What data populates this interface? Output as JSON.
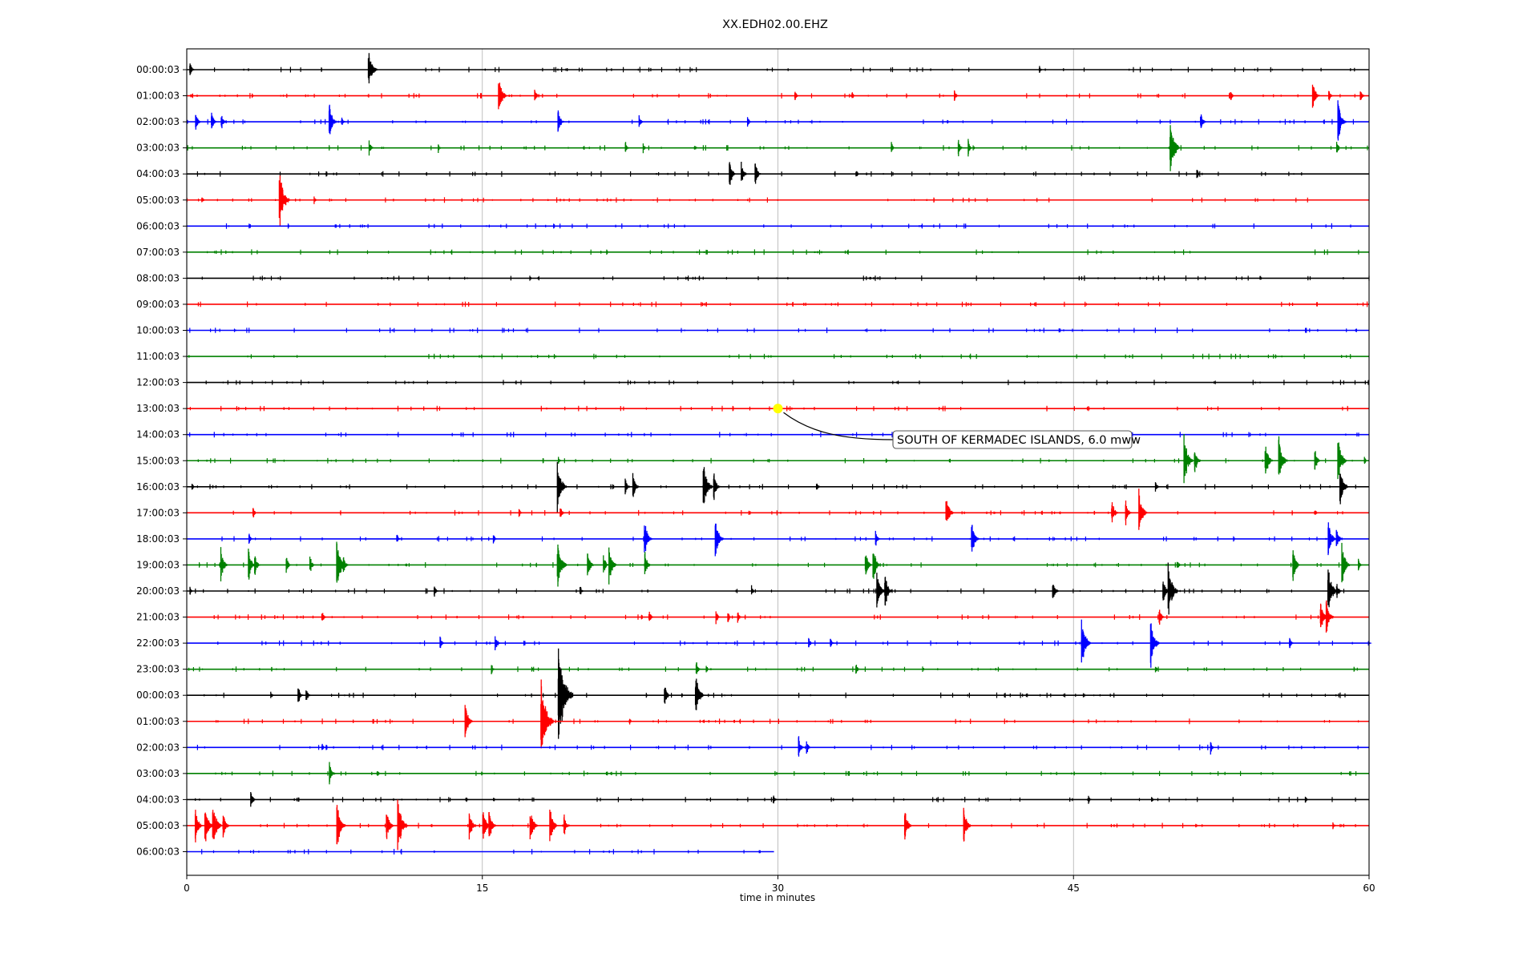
{
  "chart_data": {
    "type": "line",
    "title": "XX.EDH02.00.EHZ",
    "xlabel": "time in minutes",
    "ylabel": "",
    "xlim": [
      0,
      60
    ],
    "xticks": [
      0,
      15,
      30,
      45,
      60
    ],
    "grid": "vertical lines at x ticks",
    "trace_colors": [
      "#000000",
      "#ff0000",
      "#0000ff",
      "#008000"
    ],
    "rows": [
      {
        "label": "00:00:03",
        "color": "#000000",
        "end": 60,
        "events": [
          [
            0.2,
            0.4
          ],
          [
            9.3,
            1.1
          ],
          [
            43.3,
            0.2
          ]
        ]
      },
      {
        "label": "01:00:03",
        "color": "#ff0000",
        "end": 60,
        "events": [
          [
            15.9,
            1.0
          ],
          [
            17.7,
            0.35
          ],
          [
            30.9,
            0.3
          ],
          [
            33.8,
            0.2
          ],
          [
            39.0,
            0.3
          ],
          [
            53.0,
            0.3
          ],
          [
            57.2,
            0.75
          ],
          [
            58.0,
            0.35
          ],
          [
            59.6,
            0.35
          ]
        ]
      },
      {
        "label": "02:00:03",
        "color": "#0000ff",
        "end": 60,
        "events": [
          [
            0.5,
            0.5
          ],
          [
            1.3,
            0.5
          ],
          [
            1.8,
            0.45
          ],
          [
            7.3,
            0.9
          ],
          [
            7.9,
            0.3
          ],
          [
            18.9,
            0.65
          ],
          [
            23.0,
            0.35
          ],
          [
            28.5,
            0.3
          ],
          [
            51.5,
            0.55
          ],
          [
            58.5,
            1.0
          ]
        ]
      },
      {
        "label": "03:00:03",
        "color": "#008000",
        "end": 60,
        "events": [
          [
            9.3,
            0.4
          ],
          [
            12.8,
            0.2
          ],
          [
            22.3,
            0.3
          ],
          [
            23.2,
            0.25
          ],
          [
            25.8,
            0.2
          ],
          [
            35.8,
            0.25
          ],
          [
            39.2,
            0.4
          ],
          [
            39.7,
            0.35
          ],
          [
            50.0,
            1.3
          ],
          [
            58.4,
            0.3
          ]
        ]
      },
      {
        "label": "04:00:03",
        "color": "#000000",
        "end": 60,
        "events": [
          [
            27.6,
            0.7
          ],
          [
            28.2,
            0.6
          ],
          [
            28.9,
            0.6
          ],
          [
            34.0,
            0.25
          ],
          [
            51.3,
            0.3
          ]
        ]
      },
      {
        "label": "05:00:03",
        "color": "#ff0000",
        "end": 60,
        "events": [
          [
            0.8,
            0.2
          ],
          [
            4.8,
            1.4
          ],
          [
            6.5,
            0.2
          ]
        ]
      },
      {
        "label": "06:00:03",
        "color": "#0000ff",
        "end": 60,
        "events": []
      },
      {
        "label": "07:00:03",
        "color": "#008000",
        "end": 60,
        "events": []
      },
      {
        "label": "08:00:03",
        "color": "#000000",
        "end": 60,
        "events": [
          [
            54.5,
            0.15
          ]
        ]
      },
      {
        "label": "09:00:03",
        "color": "#ff0000",
        "end": 60,
        "events": []
      },
      {
        "label": "10:00:03",
        "color": "#0000ff",
        "end": 60,
        "events": []
      },
      {
        "label": "11:00:03",
        "color": "#008000",
        "end": 60,
        "events": []
      },
      {
        "label": "12:00:03",
        "color": "#000000",
        "end": 60,
        "events": []
      },
      {
        "label": "13:00:03",
        "color": "#ff0000",
        "end": 60,
        "events": []
      },
      {
        "label": "14:00:03",
        "color": "#0000ff",
        "end": 60,
        "events": []
      },
      {
        "label": "15:00:03",
        "color": "#008000",
        "end": 60,
        "events": [
          [
            18.9,
            0.2
          ],
          [
            50.7,
            1.2
          ],
          [
            51.2,
            0.7
          ],
          [
            54.8,
            0.9
          ],
          [
            55.5,
            1.1
          ],
          [
            57.3,
            0.6
          ],
          [
            58.5,
            1.1
          ],
          [
            59.8,
            0.2
          ]
        ]
      },
      {
        "label": "16:00:03",
        "color": "#000000",
        "end": 60,
        "events": [
          [
            0.3,
            0.2
          ],
          [
            18.9,
            1.2
          ],
          [
            22.3,
            0.4
          ],
          [
            22.7,
            0.7
          ],
          [
            26.3,
            1.2
          ],
          [
            26.8,
            0.7
          ],
          [
            32.0,
            0.3
          ],
          [
            49.2,
            0.3
          ],
          [
            58.6,
            1.0
          ]
        ]
      },
      {
        "label": "17:00:03",
        "color": "#ff0000",
        "end": 60,
        "events": [
          [
            3.4,
            0.3
          ],
          [
            16.9,
            0.25
          ],
          [
            19.0,
            0.4
          ],
          [
            38.6,
            0.9
          ],
          [
            47.0,
            0.7
          ],
          [
            47.7,
            0.6
          ],
          [
            48.4,
            1.0
          ],
          [
            57.3,
            0.2
          ]
        ]
      },
      {
        "label": "18:00:03",
        "color": "#0000ff",
        "end": 60,
        "events": [
          [
            3.2,
            0.3
          ],
          [
            10.7,
            0.3
          ],
          [
            15.6,
            0.25
          ],
          [
            23.3,
            0.9
          ],
          [
            26.9,
            1.0
          ],
          [
            35.0,
            0.4
          ],
          [
            39.9,
            0.9
          ],
          [
            58.0,
            0.9
          ],
          [
            58.4,
            0.6
          ]
        ]
      },
      {
        "label": "19:00:03",
        "color": "#008000",
        "end": 60,
        "events": [
          [
            1.8,
            0.8
          ],
          [
            3.2,
            0.8
          ],
          [
            3.5,
            0.55
          ],
          [
            5.1,
            0.45
          ],
          [
            6.3,
            0.45
          ],
          [
            7.7,
            1.2
          ],
          [
            8.0,
            0.5
          ],
          [
            18.9,
            1.2
          ],
          [
            20.4,
            0.7
          ],
          [
            21.2,
            0.55
          ],
          [
            21.5,
            0.9
          ],
          [
            23.3,
            0.6
          ],
          [
            34.5,
            0.7
          ],
          [
            34.9,
            0.9
          ],
          [
            50.3,
            0.3
          ],
          [
            56.2,
            0.8
          ],
          [
            58.7,
            1.0
          ],
          [
            59.5,
            0.3
          ]
        ]
      },
      {
        "label": "20:00:03",
        "color": "#000000",
        "end": 60,
        "events": [
          [
            0.2,
            0.2
          ],
          [
            12.6,
            0.3
          ],
          [
            20.0,
            0.3
          ],
          [
            28.7,
            0.25
          ],
          [
            35.1,
            1.0
          ],
          [
            35.5,
            0.9
          ],
          [
            44.0,
            0.6
          ],
          [
            49.6,
            0.7
          ],
          [
            49.9,
            1.3
          ],
          [
            58.0,
            1.2
          ],
          [
            58.4,
            0.5
          ]
        ]
      },
      {
        "label": "21:00:03",
        "color": "#ff0000",
        "end": 60,
        "events": [
          [
            6.9,
            0.35
          ],
          [
            23.5,
            0.35
          ],
          [
            26.9,
            0.35
          ],
          [
            27.5,
            0.3
          ],
          [
            28.0,
            0.3
          ],
          [
            49.4,
            0.5
          ],
          [
            57.6,
            0.8
          ],
          [
            57.9,
            0.9
          ]
        ]
      },
      {
        "label": "22:00:03",
        "color": "#0000ff",
        "end": 60,
        "events": [
          [
            12.9,
            0.35
          ],
          [
            15.7,
            0.45
          ],
          [
            31.6,
            0.3
          ],
          [
            32.7,
            0.3
          ],
          [
            45.5,
            1.2
          ],
          [
            49.0,
            1.1
          ],
          [
            56.0,
            0.35
          ],
          [
            60.0,
            0.15
          ]
        ]
      },
      {
        "label": "23:00:03",
        "color": "#008000",
        "end": 60,
        "events": [
          [
            15.5,
            0.25
          ],
          [
            25.9,
            0.4
          ],
          [
            26.4,
            0.2
          ],
          [
            34.0,
            0.3
          ],
          [
            49.2,
            0.25
          ]
        ]
      },
      {
        "label": "00:00:03",
        "color": "#000000",
        "end": 60,
        "events": [
          [
            4.3,
            0.2
          ],
          [
            5.7,
            0.5
          ],
          [
            6.1,
            0.4
          ],
          [
            19.0,
            2.2
          ],
          [
            24.3,
            0.6
          ],
          [
            25.9,
            1.1
          ]
        ]
      },
      {
        "label": "01:00:03",
        "color": "#ff0000",
        "end": 60,
        "events": [
          [
            14.2,
            0.9
          ],
          [
            18.1,
            1.8
          ],
          [
            22.5,
            0.2
          ]
        ]
      },
      {
        "label": "02:00:03",
        "color": "#0000ff",
        "end": 60,
        "events": [
          [
            6.9,
            0.2
          ],
          [
            31.1,
            0.55
          ],
          [
            31.5,
            0.4
          ],
          [
            52.0,
            0.3
          ]
        ]
      },
      {
        "label": "03:00:03",
        "color": "#008000",
        "end": 60,
        "events": [
          [
            7.3,
            0.6
          ]
        ]
      },
      {
        "label": "04:00:03",
        "color": "#000000",
        "end": 60,
        "events": [
          [
            3.3,
            0.5
          ],
          [
            14.2,
            0.2
          ],
          [
            15.6,
            0.15
          ],
          [
            29.8,
            0.3
          ],
          [
            45.8,
            0.2
          ],
          [
            49.0,
            0.2
          ],
          [
            56.8,
            0.2
          ]
        ]
      },
      {
        "label": "05:00:03",
        "color": "#ff0000",
        "end": 60,
        "events": [
          [
            0.5,
            0.8
          ],
          [
            1.0,
            1.0
          ],
          [
            1.4,
            1.1
          ],
          [
            1.9,
            0.7
          ],
          [
            7.7,
            1.1
          ],
          [
            10.2,
            0.8
          ],
          [
            10.8,
            1.3
          ],
          [
            14.4,
            0.7
          ],
          [
            15.1,
            0.85
          ],
          [
            15.4,
            0.8
          ],
          [
            17.5,
            0.9
          ],
          [
            18.5,
            0.9
          ],
          [
            19.2,
            0.6
          ],
          [
            36.5,
            0.8
          ],
          [
            39.5,
            0.9
          ],
          [
            58.2,
            0.2
          ]
        ]
      },
      {
        "label": "06:00:03",
        "color": "#0000ff",
        "end": 29.8,
        "events": []
      }
    ],
    "annotation": {
      "text": "SOUTH OF KERMADEC ISLANDS, 6.0 mww",
      "row": "13:00:03",
      "x": 30.0,
      "marker_color": "#ffff00"
    }
  }
}
